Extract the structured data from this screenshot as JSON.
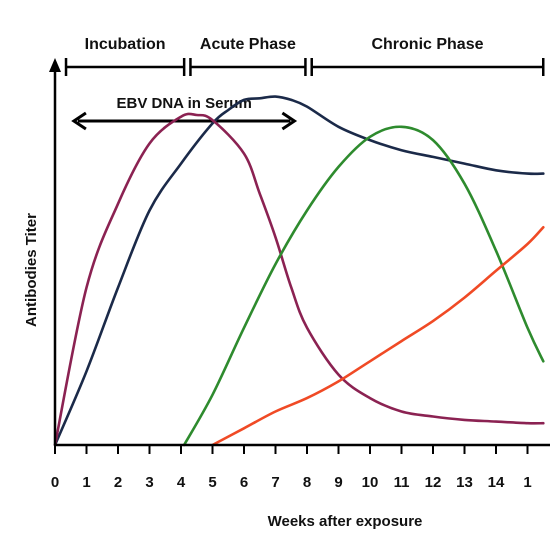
{
  "chart_data": {
    "type": "line",
    "xlabel": "Weeks after exposure",
    "ylabel": "Antibodies Titer",
    "xlim": [
      0,
      15.5
    ],
    "ylim": [
      0,
      100
    ],
    "x_ticks": [
      "0",
      "1",
      "2",
      "3",
      "4",
      "5",
      "6",
      "7",
      "8",
      "9",
      "10",
      "11",
      "12",
      "13",
      "14",
      "1"
    ],
    "grid": false,
    "phases": [
      {
        "label": "Incubation",
        "start": 0.35,
        "end": 4.1
      },
      {
        "label": "Acute Phase",
        "start": 4.3,
        "end": 7.95
      },
      {
        "label": "Chronic Phase",
        "start": 8.15,
        "end": 15.5
      }
    ],
    "annotations": [
      {
        "label": "EBV DNA in Serum",
        "start": 0.6,
        "end": 7.6
      }
    ],
    "series": [
      {
        "color": "#1b2a49",
        "x": [
          0,
          1,
          2,
          3,
          4,
          5,
          5.5,
          6,
          6.5,
          7,
          7.5,
          8,
          9,
          10,
          11,
          12,
          13,
          14,
          15,
          15.5
        ],
        "y": [
          0,
          22,
          47,
          70,
          84,
          96,
          100,
          103,
          103.5,
          104,
          103,
          101,
          95,
          91,
          88,
          86,
          84,
          82,
          81,
          81
        ]
      },
      {
        "color": "#8b2252",
        "x": [
          0,
          1,
          2,
          3,
          4,
          4.5,
          5,
          6,
          6.5,
          7,
          7.5,
          8,
          9,
          10,
          11,
          12,
          13,
          14,
          15,
          15.5
        ],
        "y": [
          0,
          47,
          72,
          90,
          98,
          98.5,
          97,
          87,
          75,
          62,
          47,
          35,
          21,
          14,
          10,
          8.5,
          7.5,
          7,
          6.5,
          6.5
        ]
      },
      {
        "color": "#2e8b2e",
        "x": [
          4.1,
          5,
          6,
          7,
          8,
          9,
          10,
          11,
          12,
          13,
          14,
          15,
          15.5
        ],
        "y": [
          0,
          15,
          35,
          54,
          70,
          83,
          92,
          95,
          91,
          78,
          58,
          35,
          25
        ]
      },
      {
        "color": "#f04a25",
        "x": [
          5,
          6,
          7,
          8,
          9,
          10,
          11,
          12,
          13,
          14,
          15,
          15.5
        ],
        "y": [
          0,
          5,
          10,
          14,
          19,
          25,
          31,
          37,
          44,
          52,
          60,
          65
        ]
      }
    ]
  }
}
